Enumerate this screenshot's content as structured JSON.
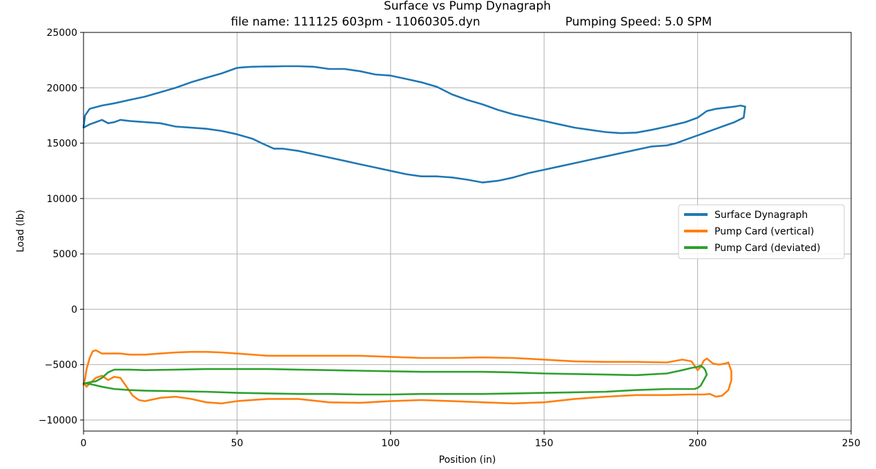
{
  "chart_data": {
    "type": "line",
    "title": "Surface vs Pump Dynagraph",
    "subtitle_left": "file name: 111125 603pm - 11060305.dyn",
    "subtitle_right": "Pumping Speed: 5.0 SPM",
    "xlabel": "Position (in)",
    "ylabel": "Load (lb)",
    "xlim": [
      0,
      250
    ],
    "ylim": [
      -11000,
      25000
    ],
    "xticks": [
      0,
      50,
      100,
      150,
      200,
      250
    ],
    "yticks": [
      -10000,
      -5000,
      0,
      5000,
      10000,
      15000,
      20000,
      25000
    ],
    "grid": true,
    "legend_position": "center-right",
    "series": [
      {
        "name": "Surface Dynagraph",
        "color": "#1f77b4",
        "x": [
          0,
          0.5,
          2,
          6,
          10,
          15,
          20,
          25,
          30,
          35,
          40,
          45,
          50,
          52,
          55,
          58,
          62,
          65,
          70,
          75,
          80,
          85,
          90,
          95,
          100,
          105,
          110,
          115,
          120,
          125,
          130,
          135,
          140,
          145,
          150,
          155,
          160,
          165,
          170,
          175,
          180,
          185,
          190,
          193,
          196,
          200,
          203,
          206,
          209,
          212,
          214,
          215.5,
          215,
          212,
          209,
          206,
          203,
          200,
          196,
          193,
          190,
          185,
          180,
          175,
          170,
          165,
          160,
          155,
          150,
          145,
          140,
          135,
          130,
          125,
          120,
          115,
          110,
          105,
          100,
          95,
          90,
          85,
          80,
          75,
          70,
          65,
          62,
          58,
          55,
          50,
          45,
          40,
          35,
          30,
          25,
          20,
          15,
          12,
          10,
          8,
          6,
          4,
          2,
          0
        ],
        "y": [
          16400,
          17500,
          18100,
          18400,
          18600,
          18900,
          19200,
          19600,
          20000,
          20500,
          20900,
          21300,
          21800,
          21850,
          21900,
          21920,
          21930,
          21950,
          21950,
          21900,
          21700,
          21700,
          21500,
          21200,
          21100,
          20800,
          20500,
          20100,
          19400,
          18900,
          18500,
          18000,
          17600,
          17300,
          17000,
          16700,
          16400,
          16200,
          16000,
          15900,
          15950,
          16200,
          16500,
          16700,
          16900,
          17300,
          17900,
          18100,
          18200,
          18300,
          18400,
          18300,
          17300,
          16900,
          16600,
          16300,
          16000,
          15700,
          15300,
          15000,
          14800,
          14700,
          14400,
          14100,
          13800,
          13500,
          13200,
          12900,
          12600,
          12300,
          11900,
          11600,
          11450,
          11700,
          11900,
          12000,
          12000,
          12200,
          12500,
          12800,
          13100,
          13400,
          13700,
          14000,
          14300,
          14500,
          14500,
          15000,
          15400,
          15800,
          16100,
          16300,
          16400,
          16500,
          16800,
          16900,
          17000,
          17100,
          16900,
          16800,
          17100,
          16900,
          16700,
          16400
        ]
      },
      {
        "name": "Pump Card (vertical)",
        "color": "#ff7f0e",
        "x": [
          0,
          0.5,
          1,
          2,
          3,
          4,
          6,
          9,
          12,
          15,
          20,
          25,
          30,
          35,
          40,
          45,
          50,
          60,
          70,
          80,
          90,
          100,
          110,
          120,
          130,
          140,
          150,
          160,
          170,
          180,
          190,
          195,
          198,
          200,
          201,
          202,
          203,
          205,
          207,
          209,
          210,
          211,
          211,
          210,
          208,
          206,
          204,
          202,
          200,
          197,
          190,
          180,
          170,
          160,
          150,
          140,
          130,
          120,
          110,
          100,
          90,
          80,
          70,
          60,
          50,
          45,
          40,
          35,
          30,
          25,
          20,
          18,
          16,
          14,
          12,
          10,
          8,
          6,
          4,
          2,
          1,
          0.5,
          0
        ],
        "y": [
          -6800,
          -6300,
          -5400,
          -4400,
          -3800,
          -3700,
          -4000,
          -4000,
          -4000,
          -4100,
          -4100,
          -4000,
          -3900,
          -3850,
          -3850,
          -3900,
          -4000,
          -4200,
          -4200,
          -4200,
          -4200,
          -4300,
          -4400,
          -4400,
          -4350,
          -4400,
          -4550,
          -4700,
          -4750,
          -4750,
          -4800,
          -4550,
          -4700,
          -5500,
          -5200,
          -4650,
          -4450,
          -4900,
          -5000,
          -4900,
          -4800,
          -5600,
          -6400,
          -7300,
          -7800,
          -7900,
          -7650,
          -7700,
          -7700,
          -7700,
          -7750,
          -7750,
          -7900,
          -8100,
          -8400,
          -8500,
          -8400,
          -8300,
          -8200,
          -8300,
          -8450,
          -8400,
          -8100,
          -8100,
          -8300,
          -8500,
          -8400,
          -8100,
          -7900,
          -8000,
          -8300,
          -8200,
          -7800,
          -7000,
          -6200,
          -6100,
          -6400,
          -6000,
          -6200,
          -6700,
          -7000,
          -6800,
          -6800
        ]
      },
      {
        "name": "Pump Card (deviated)",
        "color": "#2ca02c",
        "x": [
          0,
          2,
          4,
          6,
          8,
          10,
          15,
          20,
          30,
          40,
          50,
          60,
          70,
          80,
          90,
          100,
          110,
          120,
          130,
          140,
          150,
          160,
          170,
          180,
          190,
          195,
          198,
          200,
          201,
          202,
          202.5,
          203,
          202,
          201,
          200,
          199,
          195,
          190,
          180,
          170,
          160,
          150,
          140,
          130,
          120,
          110,
          100,
          90,
          80,
          70,
          60,
          50,
          40,
          30,
          20,
          15,
          10,
          6,
          3,
          1,
          0
        ],
        "y": [
          -6700,
          -6600,
          -6500,
          -6200,
          -5700,
          -5450,
          -5450,
          -5500,
          -5450,
          -5400,
          -5400,
          -5400,
          -5450,
          -5500,
          -5550,
          -5600,
          -5650,
          -5650,
          -5650,
          -5700,
          -5800,
          -5850,
          -5900,
          -5950,
          -5800,
          -5500,
          -5300,
          -5200,
          -5100,
          -5300,
          -5500,
          -5900,
          -6400,
          -6900,
          -7100,
          -7200,
          -7200,
          -7200,
          -7300,
          -7450,
          -7500,
          -7550,
          -7600,
          -7650,
          -7650,
          -7650,
          -7700,
          -7700,
          -7650,
          -7650,
          -7600,
          -7550,
          -7450,
          -7400,
          -7350,
          -7300,
          -7200,
          -7000,
          -6800,
          -6700,
          -6700
        ]
      }
    ]
  }
}
